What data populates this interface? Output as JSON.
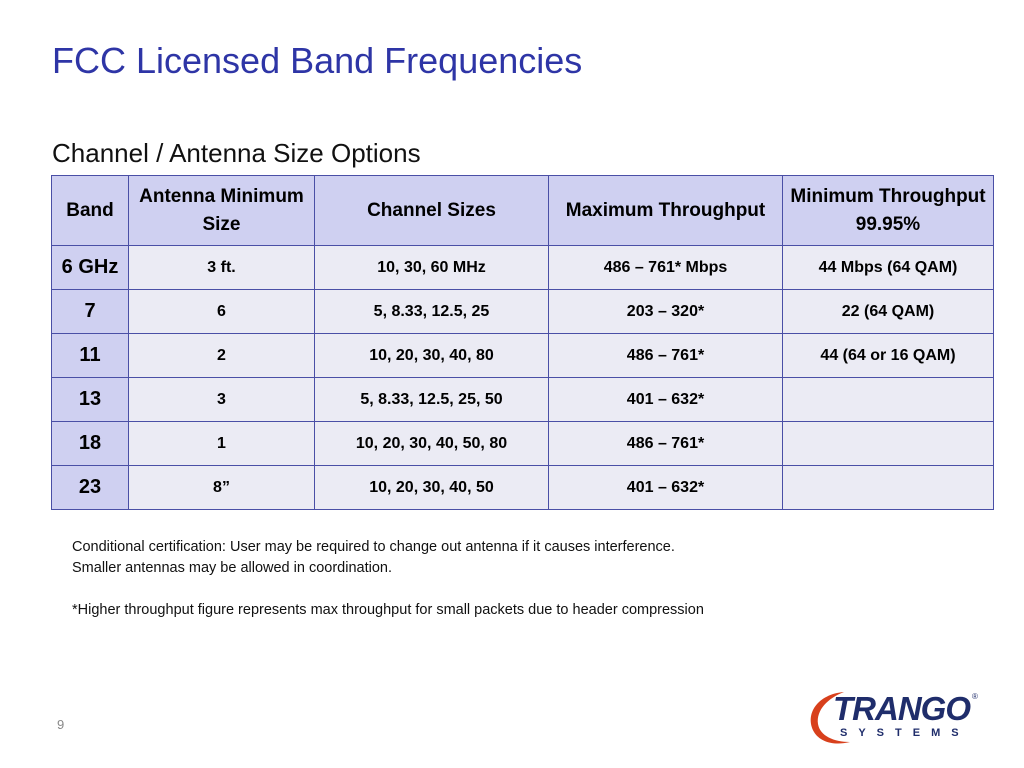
{
  "slide": {
    "title": "FCC Licensed Band Frequencies",
    "subtitle": "Channel / Antenna Size Options",
    "page_number": "9"
  },
  "table": {
    "headers": [
      "Band",
      "Antenna Minimum Size",
      "Channel Sizes",
      "Maximum Throughput",
      "Minimum Throughput 99.95%"
    ],
    "rows": [
      [
        "6 GHz",
        "3 ft.",
        "10, 30, 60 MHz",
        "486 – 761* Mbps",
        "44 Mbps (64 QAM)"
      ],
      [
        "7",
        "6",
        "5, 8.33, 12.5, 25",
        "203 – 320*",
        "22 (64 QAM)"
      ],
      [
        "11",
        "2",
        "10, 20, 30, 40, 80",
        "486 – 761*",
        "44 (64 or 16 QAM)"
      ],
      [
        "13",
        "3",
        "5, 8.33, 12.5, 25, 50",
        "401 – 632*",
        ""
      ],
      [
        "18",
        "1",
        "10, 20, 30, 40, 50, 80",
        "486 – 761*",
        ""
      ],
      [
        "23",
        "8”",
        "10, 20, 30, 40, 50",
        "401 – 632*",
        ""
      ]
    ]
  },
  "notes": {
    "line1": "Conditional certification: User may be required to change out antenna if it causes interference.",
    "line2": "Smaller antennas may be allowed in coordination.",
    "line3": "*Higher throughput figure represents max throughput for small packets due to header compression"
  },
  "logo": {
    "name": "TRANGO",
    "registered": "®",
    "sub": "SYSTEMS",
    "colors": {
      "arc": "#d8401c",
      "text": "#1f2d6b"
    }
  },
  "colors": {
    "title": "#2e35a6",
    "header_fill": "#cfd0f1",
    "cell_fill": "#ebebf4",
    "border": "#4a4fa6"
  }
}
